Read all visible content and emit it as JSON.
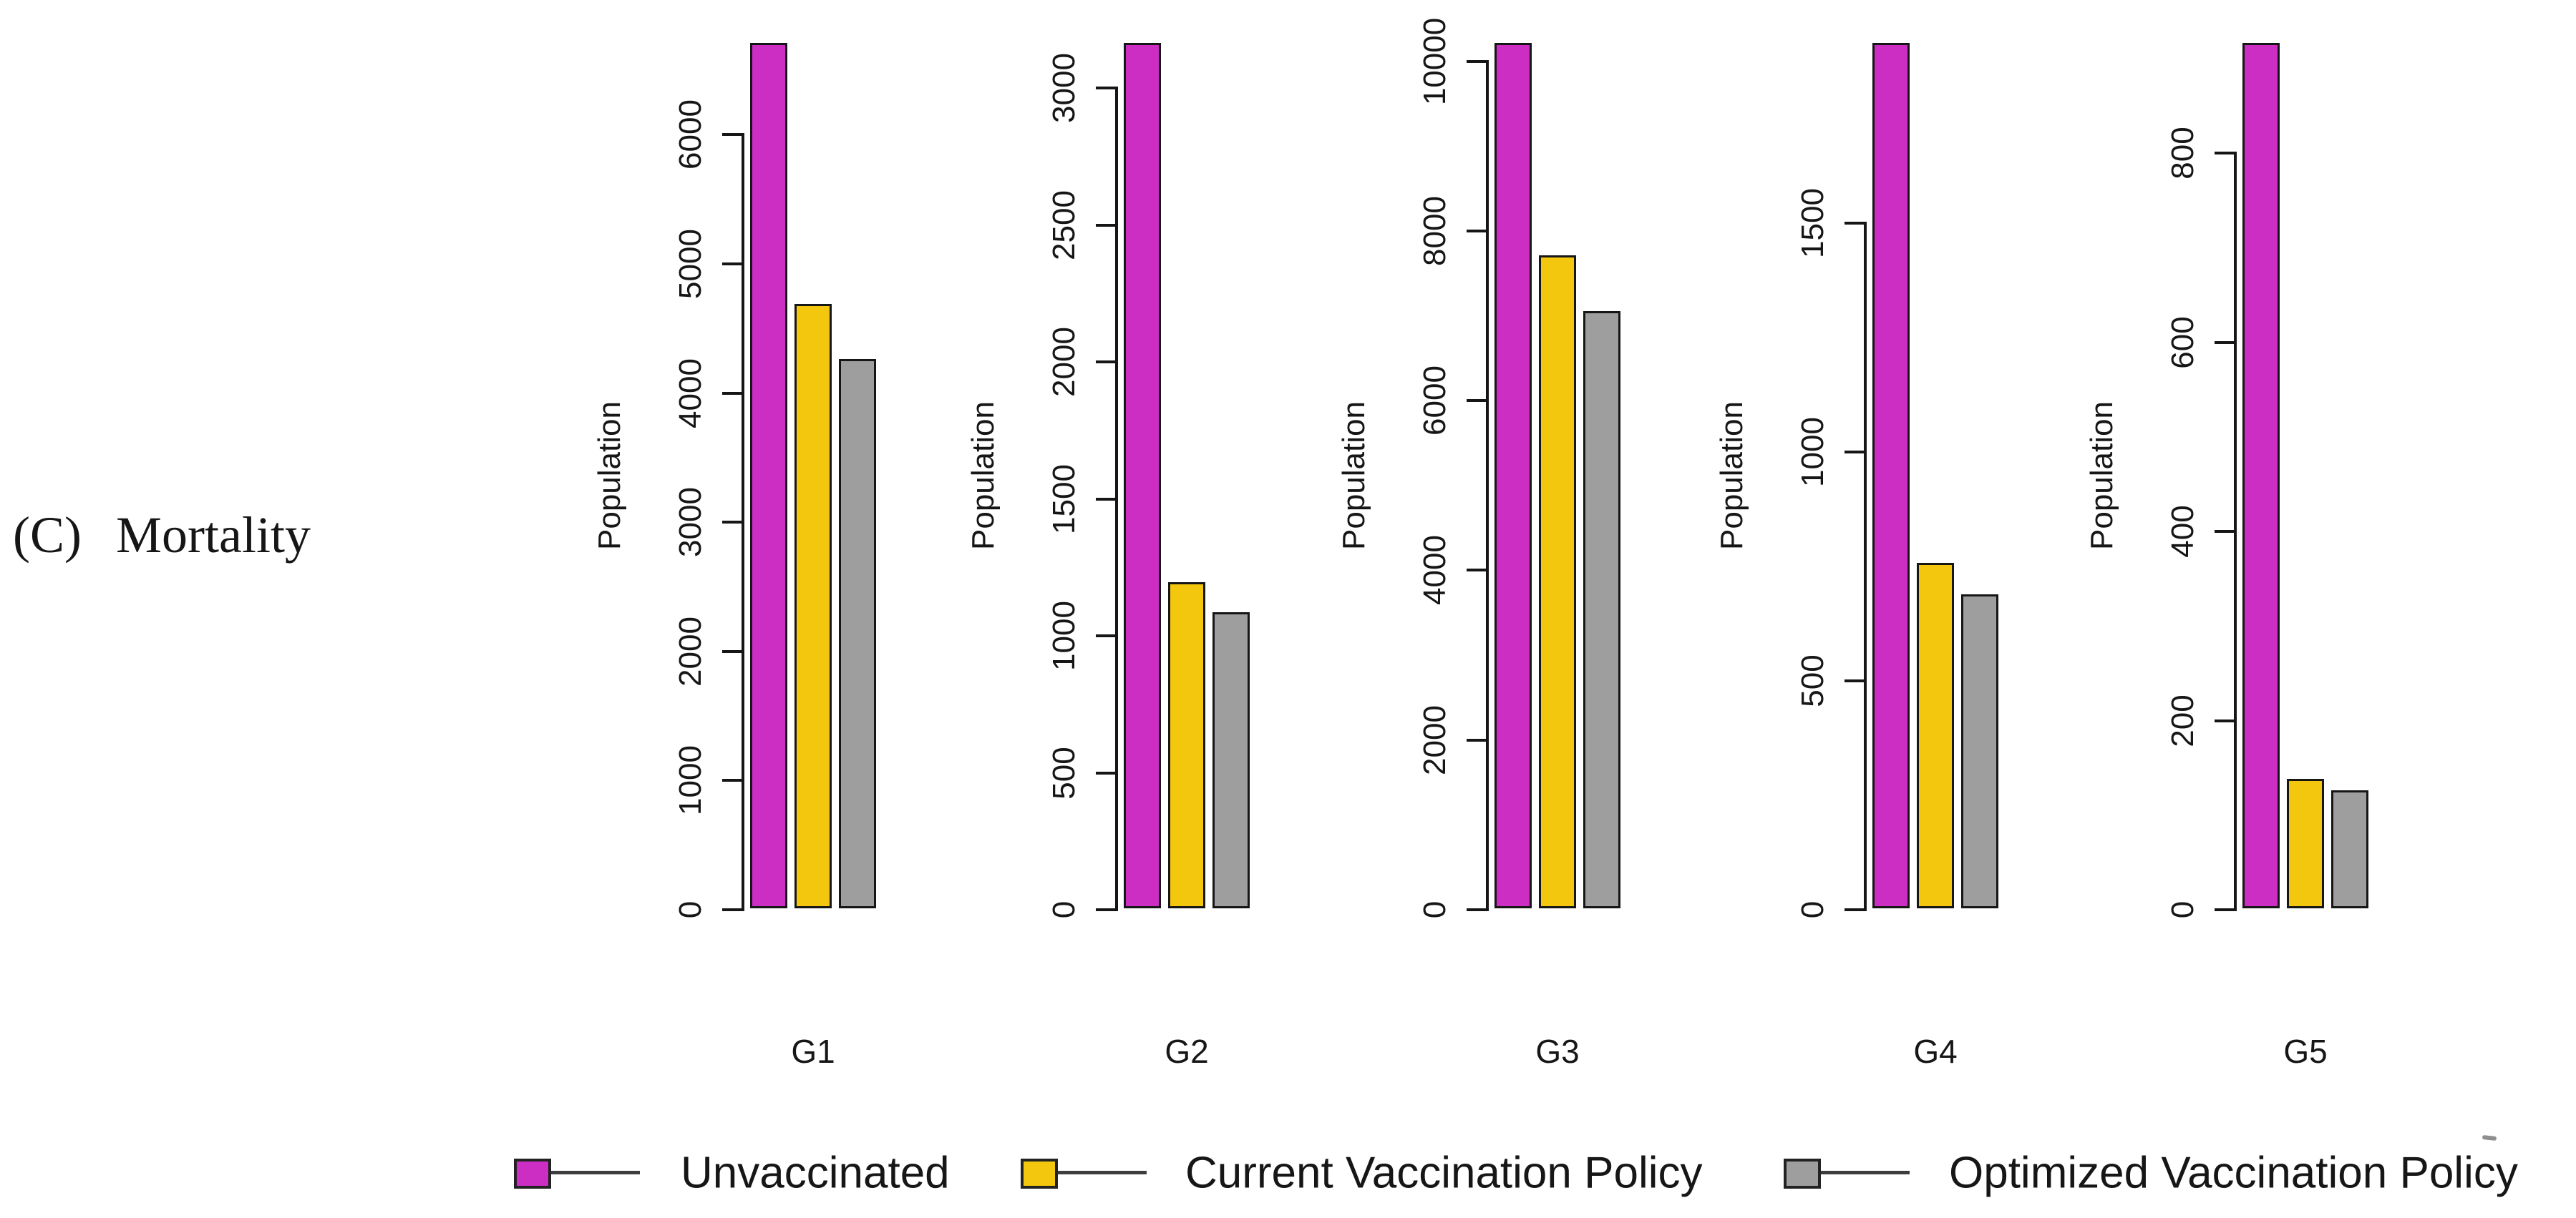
{
  "figure_label": {
    "prefix": "(C)",
    "text": "Mortality"
  },
  "colors": {
    "unvaccinated": "#CC2EC4",
    "current_policy": "#F2C70E",
    "optimized_policy": "#9E9E9E",
    "axis": "#161616",
    "background": "#FFFFFF"
  },
  "chart_data": {
    "type": "bar",
    "layout": "5 small-multiple bar panels, shared series, legend at bottom",
    "ylabel": "Population",
    "grid": false,
    "legend_position": "bottom",
    "series_names": [
      "Unvaccinated",
      "Current Vaccination Policy",
      "Optimized Vaccination Policy"
    ],
    "series_colors": [
      "#CC2EC4",
      "#F2C70E",
      "#9E9E9E"
    ],
    "panels": [
      {
        "category": "G1",
        "values": [
          6700,
          4680,
          4250
        ],
        "yticks": [
          0,
          1000,
          2000,
          3000,
          4000,
          5000,
          6000
        ],
        "ylim": [
          0,
          6700
        ]
      },
      {
        "category": "G2",
        "values": [
          3160,
          1190,
          1080
        ],
        "yticks": [
          0,
          500,
          1000,
          1500,
          2000,
          2500,
          3000
        ],
        "ylim": [
          0,
          3160
        ]
      },
      {
        "category": "G3",
        "values": [
          10200,
          7700,
          7040
        ],
        "yticks": [
          0,
          2000,
          4000,
          6000,
          8000,
          10000
        ],
        "ylim": [
          0,
          10200
        ]
      },
      {
        "category": "G4",
        "values": [
          1890,
          755,
          685
        ],
        "yticks": [
          0,
          500,
          1000,
          1500
        ],
        "ylim": [
          0,
          1890
        ]
      },
      {
        "category": "G5",
        "values": [
          915,
          137,
          125
        ],
        "yticks": [
          0,
          200,
          400,
          600,
          800
        ],
        "ylim": [
          0,
          915
        ]
      }
    ]
  },
  "legend": {
    "items": [
      {
        "label": "Unvaccinated",
        "color": "#CC2EC4"
      },
      {
        "label": "Current Vaccination Policy",
        "color": "#F2C70E"
      },
      {
        "label": "Optimized Vaccination Policy",
        "color": "#9E9E9E"
      }
    ]
  }
}
